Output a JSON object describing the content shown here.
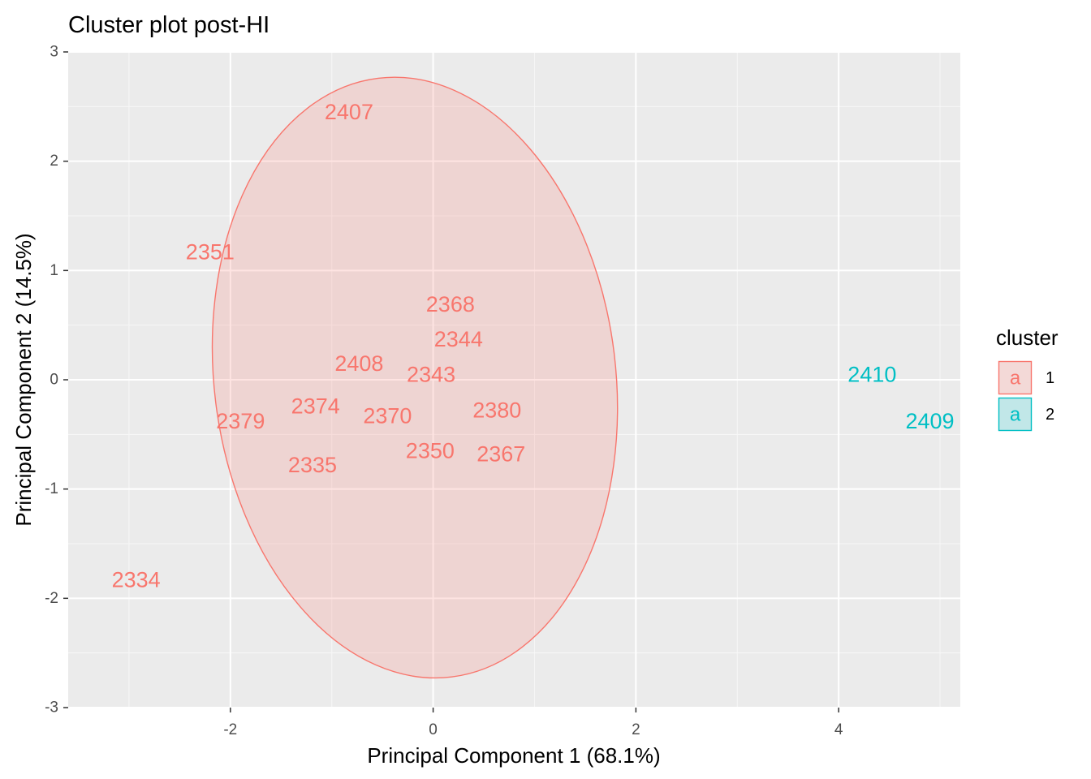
{
  "chart_data": {
    "type": "scatter",
    "title": "Cluster plot post-HI",
    "xlabel": "Principal Component 1 (68.1%)",
    "ylabel": "Principal Component 2 (14.5%)",
    "xlim": [
      -3.6,
      5.2
    ],
    "ylim": [
      -3.0,
      3.0
    ],
    "xticks": [
      -2,
      0,
      2,
      4
    ],
    "yticks": [
      -3,
      -2,
      -1,
      0,
      1,
      2,
      3
    ],
    "grid": true,
    "legend": {
      "title": "cluster",
      "placement": "right",
      "key_glyph": "a",
      "entries": [
        {
          "label": "1",
          "color": "#F8766D"
        },
        {
          "label": "2",
          "color": "#00BFC4"
        }
      ]
    },
    "series": [
      {
        "cluster": "1",
        "color": "#F8766D",
        "points": [
          {
            "label": "2407",
            "x": -0.83,
            "y": 2.45
          },
          {
            "label": "2351",
            "x": -2.2,
            "y": 1.17
          },
          {
            "label": "2368",
            "x": 0.17,
            "y": 0.69
          },
          {
            "label": "2344",
            "x": 0.25,
            "y": 0.37
          },
          {
            "label": "2408",
            "x": -0.73,
            "y": 0.15
          },
          {
            "label": "2343",
            "x": -0.02,
            "y": 0.05
          },
          {
            "label": "2374",
            "x": -1.16,
            "y": -0.24
          },
          {
            "label": "2370",
            "x": -0.45,
            "y": -0.33
          },
          {
            "label": "2380",
            "x": 0.63,
            "y": -0.28
          },
          {
            "label": "2379",
            "x": -1.9,
            "y": -0.38
          },
          {
            "label": "2350",
            "x": -0.03,
            "y": -0.65
          },
          {
            "label": "2367",
            "x": 0.67,
            "y": -0.68
          },
          {
            "label": "2335",
            "x": -1.19,
            "y": -0.78
          },
          {
            "label": "2334",
            "x": -2.93,
            "y": -1.83
          }
        ],
        "ellipse": {
          "center": [
            -0.18,
            0.02
          ],
          "semi_axis_x": 1.98,
          "semi_axis_y": 2.76,
          "rotation_deg": -7
        }
      },
      {
        "cluster": "2",
        "color": "#00BFC4",
        "points": [
          {
            "label": "2410",
            "x": 4.33,
            "y": 0.05
          },
          {
            "label": "2409",
            "x": 4.9,
            "y": -0.38
          }
        ]
      }
    ]
  }
}
